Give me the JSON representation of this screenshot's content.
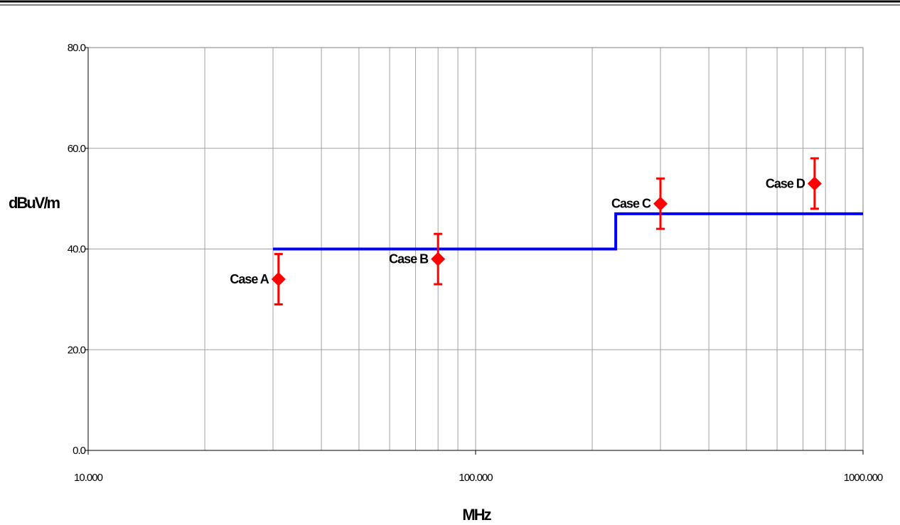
{
  "chart_data": {
    "type": "scatter",
    "title": "",
    "xlabel": "MHz",
    "ylabel": "dBuV/m",
    "x_scale": "log",
    "xlim": [
      10,
      1000
    ],
    "ylim": [
      0,
      80
    ],
    "x_ticks": [
      "10.000",
      "100.000",
      "1000.000"
    ],
    "y_ticks": [
      "0.0",
      "20.0",
      "40.0",
      "60.0",
      "80.0"
    ],
    "grid": true,
    "limit_line": {
      "color": "#0000ff",
      "steps": [
        {
          "x_start": 30,
          "x_end": 230,
          "y": 40
        },
        {
          "x_start": 230,
          "x_end": 1000,
          "y": 47
        }
      ]
    },
    "points": [
      {
        "label": "Case A",
        "x": 31,
        "y": 34,
        "err_low": 29,
        "err_high": 39
      },
      {
        "label": "Case B",
        "x": 80,
        "y": 38,
        "err_low": 33,
        "err_high": 43
      },
      {
        "label": "Case C",
        "x": 300,
        "y": 49,
        "err_low": 44,
        "err_high": 54
      },
      {
        "label": "Case D",
        "x": 750,
        "y": 53,
        "err_low": 48,
        "err_high": 58
      }
    ],
    "point_color": "#ff0000"
  }
}
